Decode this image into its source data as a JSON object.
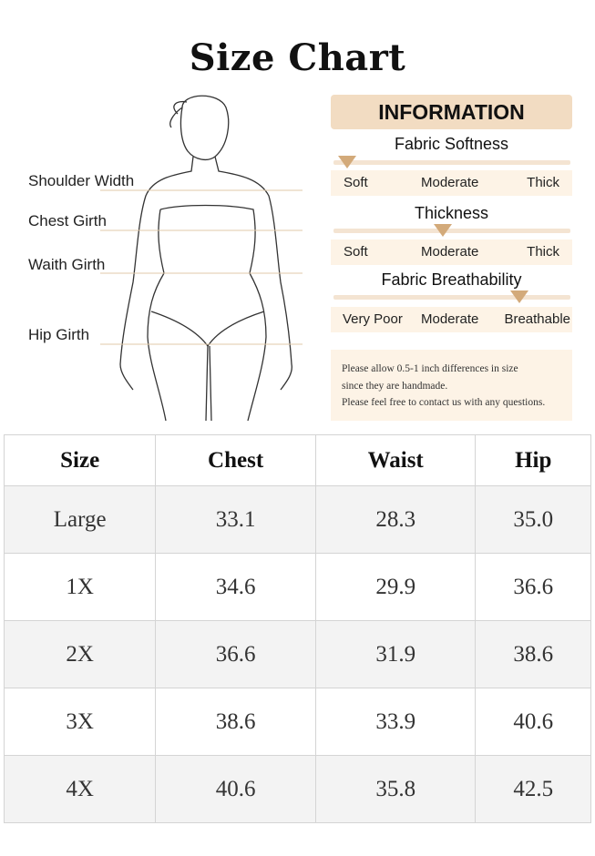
{
  "title": "Size Chart",
  "figure": {
    "labels": [
      "Shoulder Width",
      "Chest Girth",
      "Waith Girth",
      "Hip Girth"
    ]
  },
  "information": {
    "heading": "INFORMATION",
    "scales": [
      {
        "title": "Fabric Softness",
        "options": [
          "Soft",
          "Moderate",
          "Thick"
        ],
        "level": 0
      },
      {
        "title": "Thickness",
        "options": [
          "Soft",
          "Moderate",
          "Thick"
        ],
        "level": 0.5
      },
      {
        "title": "Fabric Breathability",
        "options": [
          "Very Poor",
          "Moderate",
          "Breathable"
        ],
        "level": 0.9
      }
    ],
    "note": [
      "Please allow 0.5-1 inch differences in size",
      "since they are handmade.",
      "Please feel free to contact us with any questions."
    ],
    "accent": "#d3aa7a"
  },
  "table": {
    "headers": [
      "Size",
      "Chest",
      "Waist",
      "Hip"
    ],
    "rows": [
      [
        "Large",
        "33.1",
        "28.3",
        "35.0"
      ],
      [
        "1X",
        "34.6",
        "29.9",
        "36.6"
      ],
      [
        "2X",
        "36.6",
        "31.9",
        "38.6"
      ],
      [
        "3X",
        "38.6",
        "33.9",
        "40.6"
      ],
      [
        "4X",
        "40.6",
        "35.8",
        "42.5"
      ]
    ]
  }
}
